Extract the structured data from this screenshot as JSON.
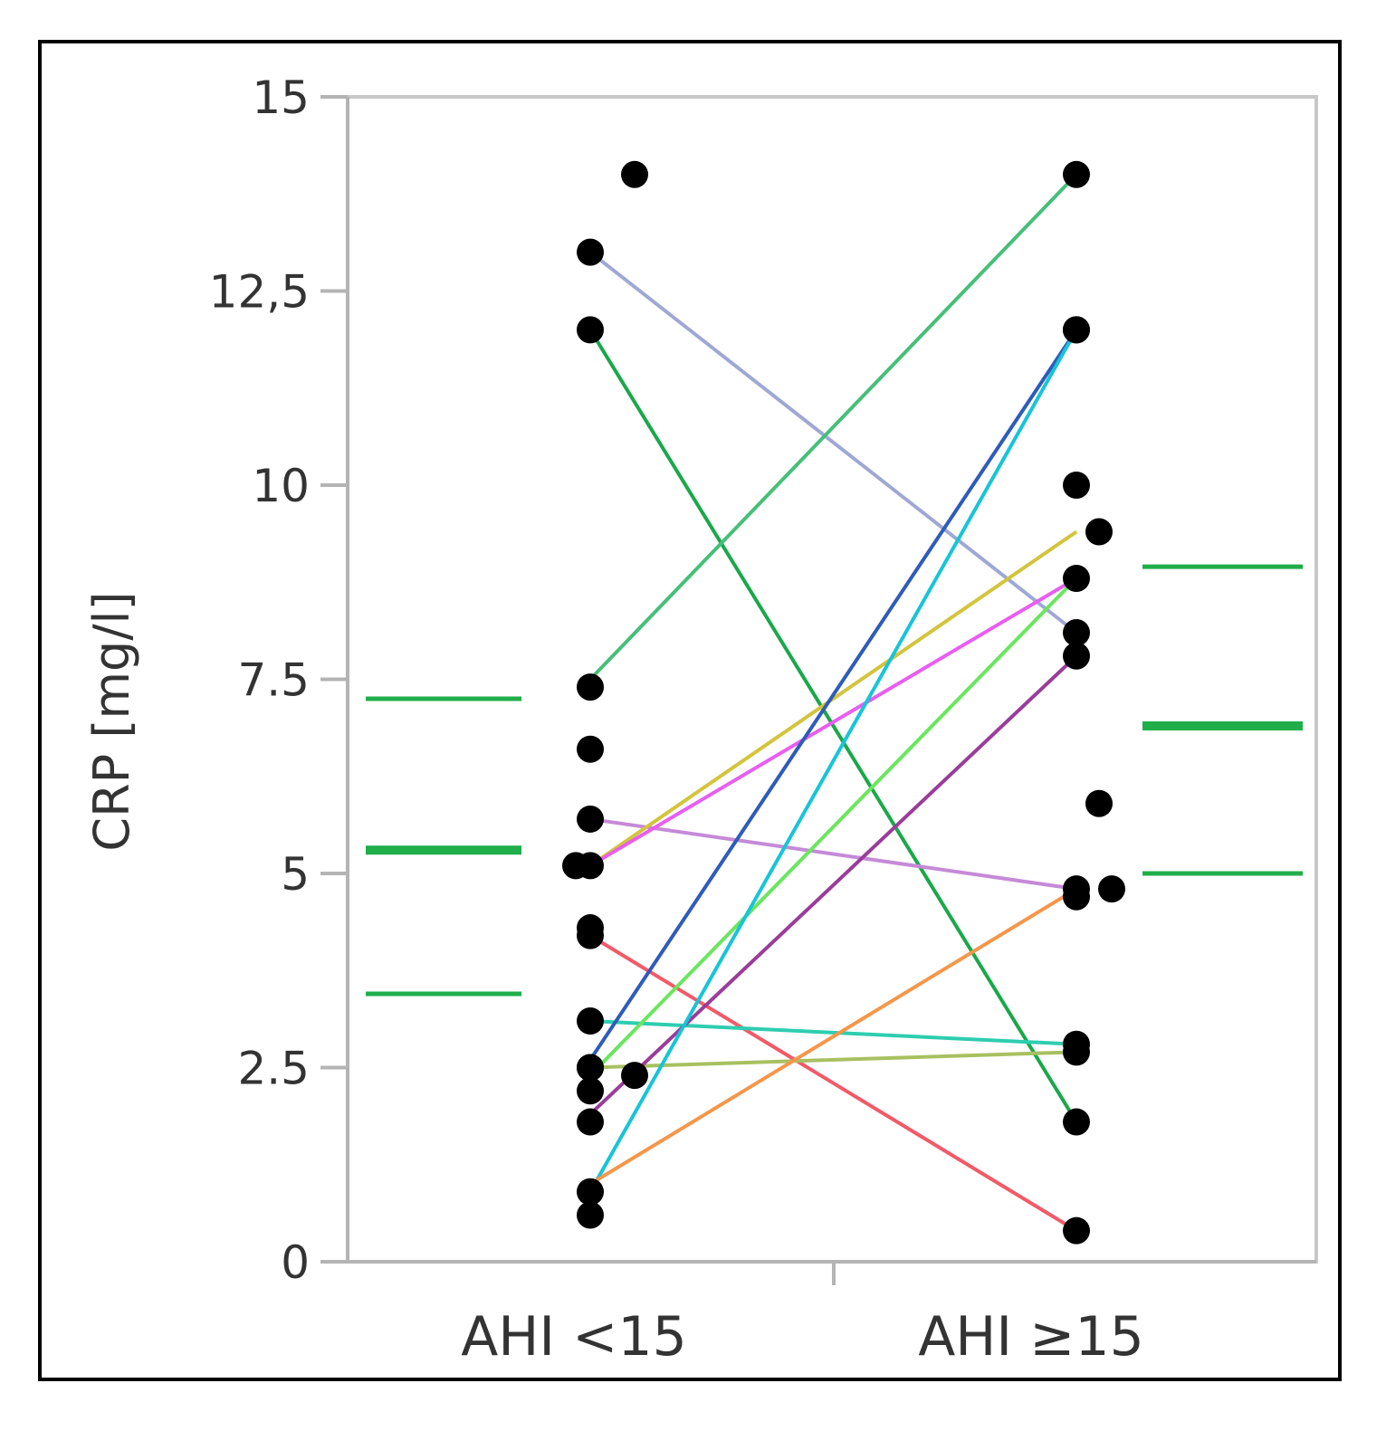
{
  "chart_data": {
    "type": "scatter",
    "ylabel": "CRP [mg/l]",
    "ylim": [
      0,
      15
    ],
    "yticks": [
      "0",
      "2.5",
      "5",
      "7.5",
      "10",
      "12,5",
      "15"
    ],
    "ytick_values": [
      0,
      2.5,
      5,
      7.5,
      10,
      12.5,
      15
    ],
    "categories": [
      "AHI <15",
      "AHI ≥15"
    ],
    "grid": false,
    "points": {
      "AHI <15": [
        14,
        13,
        12,
        7.4,
        6.6,
        5.7,
        5.1,
        5.1,
        4.3,
        4.2,
        3.1,
        2.5,
        2.5,
        2.4,
        2.2,
        1.8,
        0.9,
        0.6
      ],
      "AHI ≥15": [
        14,
        12,
        12,
        10,
        9.4,
        8.8,
        8.1,
        7.8,
        5.9,
        4.8,
        4.8,
        4.7,
        2.8,
        2.7,
        1.8,
        0.4
      ]
    },
    "paired_lines": [
      {
        "from": 13.0,
        "to": 8.1,
        "color": "#9fa8d4"
      },
      {
        "from": 12.0,
        "to": 1.8,
        "color": "#1aa84a"
      },
      {
        "from": 7.5,
        "to": 14.0,
        "color": "#46bf7a"
      },
      {
        "from": 5.7,
        "to": 4.8,
        "color": "#c58ad8"
      },
      {
        "from": 5.1,
        "to": 9.4,
        "color": "#d3c43c"
      },
      {
        "from": 5.1,
        "to": 8.8,
        "color": "#e85ef0"
      },
      {
        "from": 4.2,
        "to": 0.4,
        "color": "#f25a68"
      },
      {
        "from": 3.1,
        "to": 2.8,
        "color": "#2ecdb0"
      },
      {
        "from": 2.6,
        "to": 12.0,
        "color": "#2f5cb8"
      },
      {
        "from": 2.5,
        "to": 2.7,
        "color": "#a8c060"
      },
      {
        "from": 2.4,
        "to": 8.8,
        "color": "#6ae65e"
      },
      {
        "from": 1.9,
        "to": 7.8,
        "color": "#9a3c9a"
      },
      {
        "from": 0.9,
        "to": 12.0,
        "color": "#18c4d8"
      },
      {
        "from": 1.0,
        "to": 4.8,
        "color": "#f5964a"
      }
    ],
    "summary_lines": {
      "AHI <15": {
        "mean": 5.3,
        "upper": 7.25,
        "lower": 3.45
      },
      "AHI ≥15": {
        "mean": 6.9,
        "upper": 8.95,
        "lower": 5.0
      }
    },
    "summary_color": "#1fae4a"
  }
}
